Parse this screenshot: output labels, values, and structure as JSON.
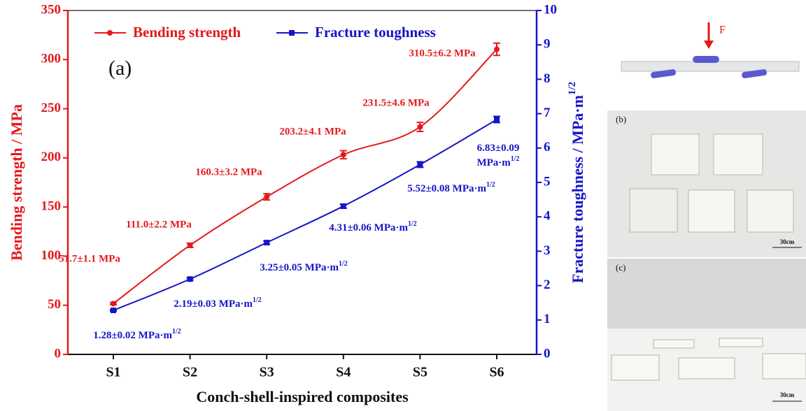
{
  "chart_data": {
    "type": "line",
    "annotation": "(a)",
    "xlabel": "Conch-shell-inspired composites",
    "ylabel": "Bending strength / MPa",
    "y2label": "Fracture toughness / MPa·m",
    "unit_exponent": "1/2",
    "categories": [
      "S1",
      "S2",
      "S3",
      "S4",
      "S5",
      "S6"
    ],
    "ylim": [
      0,
      350
    ],
    "yticks": [
      0,
      50,
      100,
      150,
      200,
      250,
      300,
      350
    ],
    "y2lim": [
      0,
      10
    ],
    "y2ticks": [
      0,
      1,
      2,
      3,
      4,
      5,
      6,
      7,
      8,
      9,
      10
    ],
    "legend": "upper left",
    "series": [
      {
        "name": "Bending strength",
        "color": "#e3191c",
        "marker": "circle",
        "values": [
          51.7,
          111.0,
          160.3,
          203.2,
          231.5,
          310.5
        ],
        "errors": [
          1.1,
          2.2,
          3.2,
          4.1,
          4.6,
          6.2
        ],
        "value_labels": [
          "51.7±1.1 MPa",
          "111.0±2.2 MPa",
          "160.3±3.2 MPa",
          "203.2±4.1 MPa",
          "231.5±4.6 MPa",
          "310.5±6.2 MPa"
        ]
      },
      {
        "name": "Fracture toughness",
        "color": "#1515c8",
        "marker": "square",
        "axis": "y2",
        "values": [
          1.28,
          2.19,
          3.25,
          4.31,
          5.52,
          6.83
        ],
        "errors": [
          0.02,
          0.03,
          0.05,
          0.06,
          0.08,
          0.09
        ],
        "value_labels": [
          "1.28±0.02 MPa·m",
          "2.19±0.03 MPa·m",
          "3.25±0.05 MPa·m",
          "4.31±0.06 MPa·m",
          "5.52±0.08 MPa·m",
          "6.83±0.09 MPa·m"
        ]
      }
    ]
  },
  "figure_labels": {
    "force": "F",
    "panel_b": "(b)",
    "panel_c": "(c)",
    "scale": "30cm"
  }
}
